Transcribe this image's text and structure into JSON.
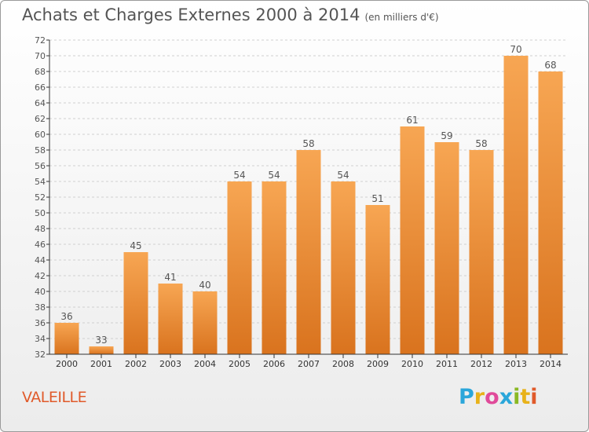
{
  "header": {
    "title": "Achats et Charges Externes 2000 à 2014",
    "subtitle": "(en milliers d'€)"
  },
  "footer": {
    "commune": "VALEILLE",
    "logo_letters": [
      "P",
      "r",
      "o",
      "x",
      "i",
      "t",
      "i"
    ],
    "logo_colors": [
      "#2aa6da",
      "#e8b21a",
      "#e04a9a",
      "#2aa6da",
      "#8ab823",
      "#e8b21a",
      "#e05a2a"
    ]
  },
  "colors": {
    "bar_top": "#f7a653",
    "bar_bottom": "#d9731e",
    "grid": "#d0d0d0",
    "axis": "#333333",
    "text": "#555555"
  },
  "chart_data": {
    "type": "bar",
    "title": "Achats et Charges Externes 2000 à 2014",
    "subtitle": "(en milliers d'€)",
    "categories": [
      "2000",
      "2001",
      "2002",
      "2003",
      "2004",
      "2005",
      "2006",
      "2007",
      "2008",
      "2009",
      "2010",
      "2011",
      "2012",
      "2013",
      "2014"
    ],
    "values": [
      36,
      33,
      45,
      41,
      40,
      54,
      54,
      58,
      54,
      51,
      61,
      59,
      58,
      70,
      68
    ],
    "ylim": [
      32,
      72
    ],
    "yticks": [
      32,
      34,
      36,
      38,
      40,
      42,
      44,
      46,
      48,
      50,
      52,
      54,
      56,
      58,
      60,
      62,
      64,
      66,
      68,
      70,
      72
    ],
    "grid": true
  }
}
